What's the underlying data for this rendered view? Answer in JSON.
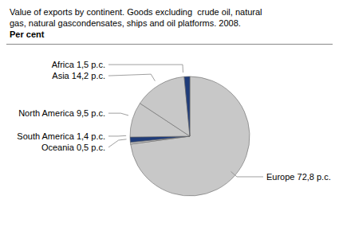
{
  "chart_data": {
    "type": "pie",
    "title": "Value of exports by continent. Goods excluding  crude oil, natural\ngas, natural gascondensates, ships and oil platforms. 2008.",
    "subtitle": "Per cent",
    "categories": [
      "Europe 72,8 p.c.",
      "Oceania 0,5 p.c.",
      "South America 1,4 p.c.",
      "North America 9,5 p.c.",
      "Asia 14,2 p.c.",
      "Africa 1,5 p.c."
    ],
    "values": [
      72.8,
      0.5,
      1.4,
      9.5,
      14.2,
      1.5
    ],
    "colors": [
      "#c8c8c8",
      "#c8c8c8",
      "#1f3c7a",
      "#c8c8c8",
      "#c8c8c8",
      "#1f3c7a"
    ]
  }
}
